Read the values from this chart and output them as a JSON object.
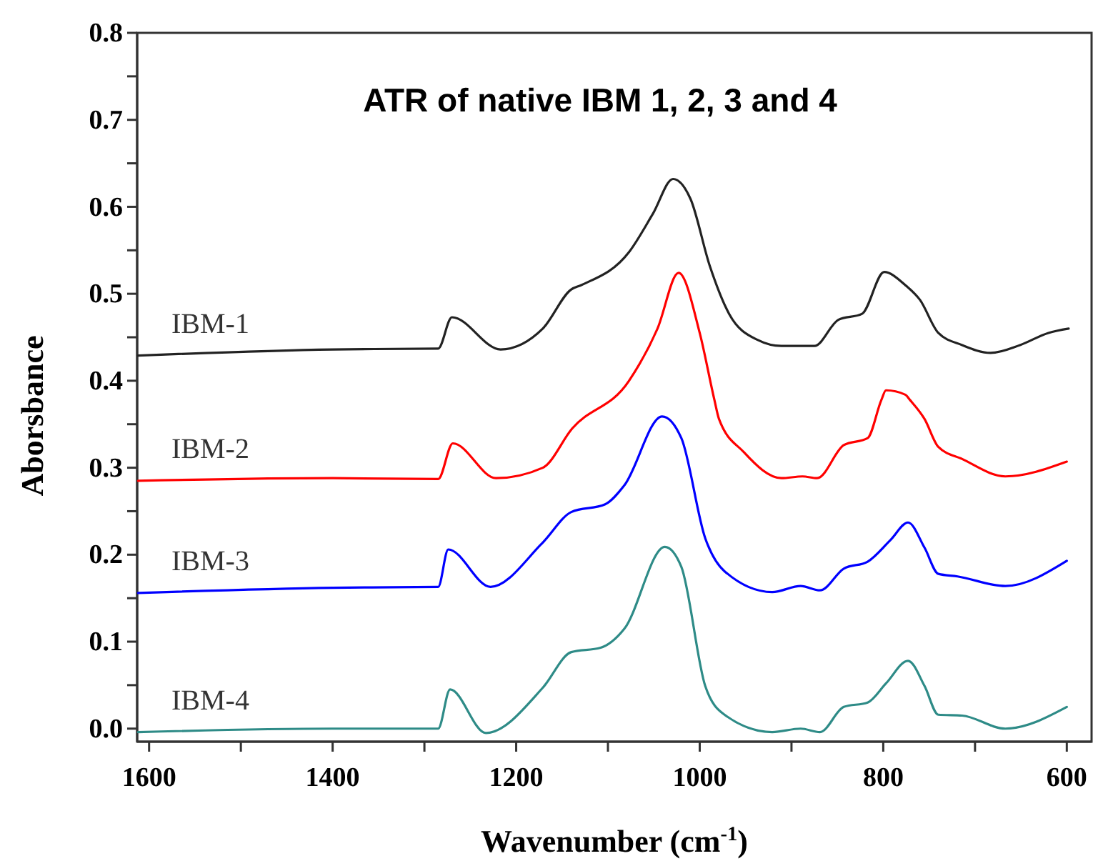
{
  "chart_data": {
    "type": "line",
    "title": "ATR of native IBM 1, 2, 3 and 4",
    "xlabel": "Wavenumber (cm$^{-1}$)",
    "ylabel": "Aborsbance",
    "xlim": [
      1613,
      573
    ],
    "ylim": [
      -0.015,
      0.8
    ],
    "xticks": [
      1600,
      {
        "value": 1500,
        "label": null
      },
      1400,
      {
        "value": 1300,
        "label": null
      },
      1200,
      {
        "value": 1100,
        "label": null
      },
      1000,
      {
        "value": 900,
        "label": null
      },
      800,
      {
        "value": 700,
        "label": null
      },
      600
    ],
    "yticks": [
      {
        "value": 0,
        "label": "0.0"
      },
      {
        "value": 0.05,
        "label": null
      },
      0.1,
      {
        "value": 0.15,
        "label": null
      },
      0.2,
      {
        "value": 0.25,
        "label": null
      },
      0.3,
      {
        "value": 0.35,
        "label": null
      },
      0.4,
      {
        "value": 0.45,
        "label": null
      },
      0.5,
      {
        "value": 0.55,
        "label": null
      },
      0.6,
      {
        "value": 0.65,
        "label": null
      },
      0.7,
      {
        "value": 0.75,
        "label": null
      },
      0.8
    ],
    "grid": false,
    "marker": "none",
    "line_style": "solid",
    "series": [
      {
        "name": "IBM-1",
        "color": "#222222",
        "x": [
          1612,
          1400,
          1285,
          1270,
          1217,
          1171,
          1140,
          1129,
          1077,
          1051,
          1029,
          1010,
          989,
          968,
          937,
          911,
          875,
          849,
          823,
          799,
          776,
          760,
          740,
          714,
          683,
          651,
          620,
          598
        ],
        "values": [
          0.429,
          0.436,
          0.437,
          0.473,
          0.436,
          0.46,
          0.505,
          0.51,
          0.548,
          0.592,
          0.632,
          0.609,
          0.532,
          0.477,
          0.447,
          0.44,
          0.44,
          0.47,
          0.477,
          0.525,
          0.51,
          0.493,
          0.455,
          0.441,
          0.432,
          0.441,
          0.455,
          0.46
        ]
      },
      {
        "name": "IBM-2",
        "color": "#ff0000",
        "x": [
          1612,
          1400,
          1285,
          1269,
          1222,
          1171,
          1139,
          1077,
          1046,
          1023,
          1000,
          984,
          979,
          952,
          911,
          888,
          872,
          843,
          817,
          802,
          797,
          776,
          771,
          755,
          740,
          714,
          667,
          600
        ],
        "values": [
          0.285,
          0.288,
          0.287,
          0.328,
          0.288,
          0.3,
          0.345,
          0.4,
          0.46,
          0.524,
          0.455,
          0.378,
          0.356,
          0.318,
          0.288,
          0.29,
          0.288,
          0.326,
          0.334,
          0.378,
          0.389,
          0.384,
          0.378,
          0.356,
          0.324,
          0.31,
          0.29,
          0.307
        ]
      },
      {
        "name": "IBM-3",
        "color": "#0000ff",
        "x": [
          1612,
          1400,
          1285,
          1274,
          1228,
          1171,
          1140,
          1103,
          1082,
          1041,
          1020,
          994,
          973,
          921,
          890,
          869,
          843,
          817,
          792,
          773,
          755,
          740,
          719,
          667,
          600
        ],
        "values": [
          0.156,
          0.162,
          0.163,
          0.206,
          0.163,
          0.214,
          0.249,
          0.258,
          0.28,
          0.359,
          0.334,
          0.219,
          0.181,
          0.157,
          0.164,
          0.159,
          0.184,
          0.192,
          0.217,
          0.237,
          0.208,
          0.178,
          0.175,
          0.164,
          0.193
        ]
      },
      {
        "name": "IBM-4",
        "color": "#2e8b87",
        "x": [
          1612,
          1400,
          1285,
          1272,
          1233,
          1171,
          1140,
          1108,
          1082,
          1038,
          1020,
          994,
          973,
          921,
          890,
          869,
          843,
          817,
          797,
          773,
          755,
          740,
          714,
          667,
          600
        ],
        "values": [
          -0.004,
          0.0,
          0.0,
          0.045,
          -0.005,
          0.047,
          0.088,
          0.093,
          0.115,
          0.209,
          0.186,
          0.049,
          0.016,
          -0.004,
          0.0,
          -0.004,
          0.025,
          0.03,
          0.052,
          0.078,
          0.049,
          0.016,
          0.015,
          0.0,
          0.025
        ]
      }
    ]
  }
}
